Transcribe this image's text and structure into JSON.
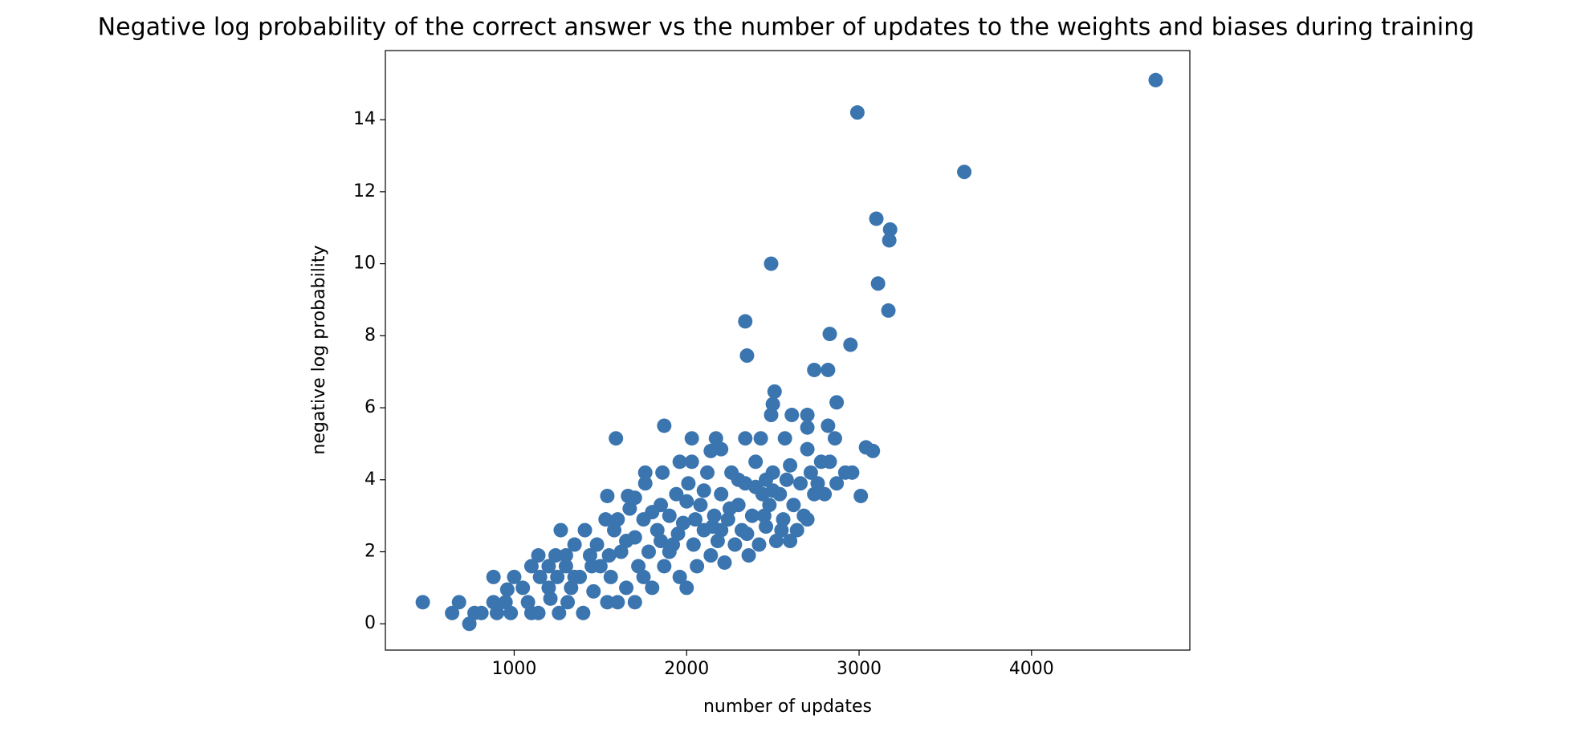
{
  "chart_data": {
    "type": "scatter",
    "title": "Negative log probability of the correct answer vs the number of updates to the weights and biases during training",
    "x_label": "number of updates",
    "y_label": "negative log probability",
    "color": "#3b75af",
    "xlim": [
      253,
      4918
    ],
    "ylim": [
      -0.73,
      15.92
    ],
    "xticks": [
      1000,
      2000,
      3000,
      4000
    ],
    "yticks": [
      0,
      2,
      4,
      6,
      8,
      10,
      12,
      14
    ],
    "x": [
      4720,
      2990,
      3610,
      3100,
      3180,
      3175,
      2490,
      3110,
      3170,
      2340,
      2830,
      2950,
      2350,
      2740,
      2820,
      2510,
      2870,
      2500,
      2700,
      2610,
      2490,
      1870,
      2820,
      2700,
      1590,
      2030,
      2170,
      2340,
      2430,
      2570,
      2860,
      3040,
      3080,
      2700,
      2200,
      2140,
      2830,
      2030,
      1960,
      1760,
      1860,
      2920,
      2960,
      3010,
      2870,
      2460,
      1540,
      1660,
      1270,
      470,
      640,
      680,
      740,
      770,
      810,
      880,
      880,
      900,
      950,
      960,
      980,
      1000,
      1050,
      1080,
      1100,
      1140,
      1100,
      1150,
      1140,
      1200,
      1210,
      1240,
      1260,
      1300,
      1310,
      1330,
      1350,
      1380,
      1400,
      1410,
      1440,
      1460,
      1480,
      1500,
      1530,
      1540,
      1560,
      1580,
      1600,
      1620,
      1650,
      1670,
      1700,
      1700,
      1720,
      1750,
      1760,
      1780,
      1800,
      1830,
      1850,
      1870,
      1900,
      1920,
      1940,
      1960,
      1980,
      2000,
      2010,
      2040,
      2060,
      2080,
      2100,
      2120,
      2140,
      2160,
      2180,
      2200,
      2220,
      2240,
      2260,
      2280,
      2300,
      2320,
      2340,
      2360,
      2380,
      2400,
      2420,
      2440,
      2460,
      2480,
      2500,
      2520,
      2540,
      2560,
      2580,
      2600,
      2620,
      2640,
      2660,
      2680,
      2700,
      2720,
      2740,
      2760,
      2780,
      2800,
      1300,
      1250,
      1450,
      1550,
      1650,
      1750,
      1850,
      1950,
      2050,
      2150,
      2250,
      2350,
      2450,
      2550,
      1200,
      1350,
      1600,
      1700,
      1800,
      1900,
      2000,
      2100,
      2200,
      2300,
      2400,
      2500,
      2600
    ],
    "values": [
      15.1,
      14.2,
      12.55,
      11.25,
      10.95,
      10.65,
      10.0,
      9.45,
      8.7,
      8.4,
      8.05,
      7.75,
      7.45,
      7.05,
      7.05,
      6.45,
      6.15,
      6.1,
      5.8,
      5.8,
      5.8,
      5.5,
      5.5,
      5.45,
      5.15,
      5.15,
      5.15,
      5.15,
      5.15,
      5.15,
      5.15,
      4.9,
      4.8,
      4.85,
      4.85,
      4.8,
      4.5,
      4.5,
      4.5,
      4.2,
      4.2,
      4.2,
      4.2,
      3.55,
      3.9,
      4.0,
      3.55,
      3.55,
      2.6,
      0.6,
      0.3,
      0.6,
      0.0,
      0.3,
      0.3,
      1.3,
      0.6,
      0.3,
      0.6,
      0.95,
      0.3,
      1.3,
      1.0,
      0.6,
      0.3,
      0.3,
      1.6,
      1.3,
      1.9,
      1.6,
      0.7,
      1.9,
      0.3,
      1.6,
      0.6,
      1.0,
      2.2,
      1.3,
      0.3,
      2.6,
      1.9,
      0.9,
      2.2,
      1.6,
      2.9,
      0.6,
      1.3,
      2.6,
      0.6,
      2.0,
      1.0,
      3.2,
      0.6,
      2.4,
      1.6,
      2.9,
      3.9,
      2.0,
      1.0,
      2.6,
      3.3,
      1.6,
      3.0,
      2.2,
      3.6,
      1.3,
      2.8,
      1.0,
      3.9,
      2.2,
      1.6,
      3.3,
      2.6,
      4.2,
      1.9,
      3.0,
      2.3,
      3.6,
      1.7,
      2.9,
      4.2,
      2.2,
      3.3,
      2.6,
      3.9,
      1.9,
      3.0,
      4.5,
      2.2,
      3.6,
      2.7,
      3.3,
      4.2,
      2.3,
      3.6,
      2.9,
      4.0,
      2.3,
      3.3,
      2.6,
      3.9,
      3.0,
      2.9,
      4.2,
      3.6,
      3.9,
      4.5,
      3.6,
      1.9,
      1.3,
      1.6,
      1.9,
      2.3,
      1.3,
      2.3,
      2.5,
      2.9,
      2.7,
      3.2,
      2.5,
      3.0,
      2.6,
      1.0,
      1.3,
      2.9,
      3.5,
      3.1,
      2.0,
      3.4,
      3.7,
      2.6,
      4.0,
      3.8,
      3.7,
      4.4
    ]
  }
}
